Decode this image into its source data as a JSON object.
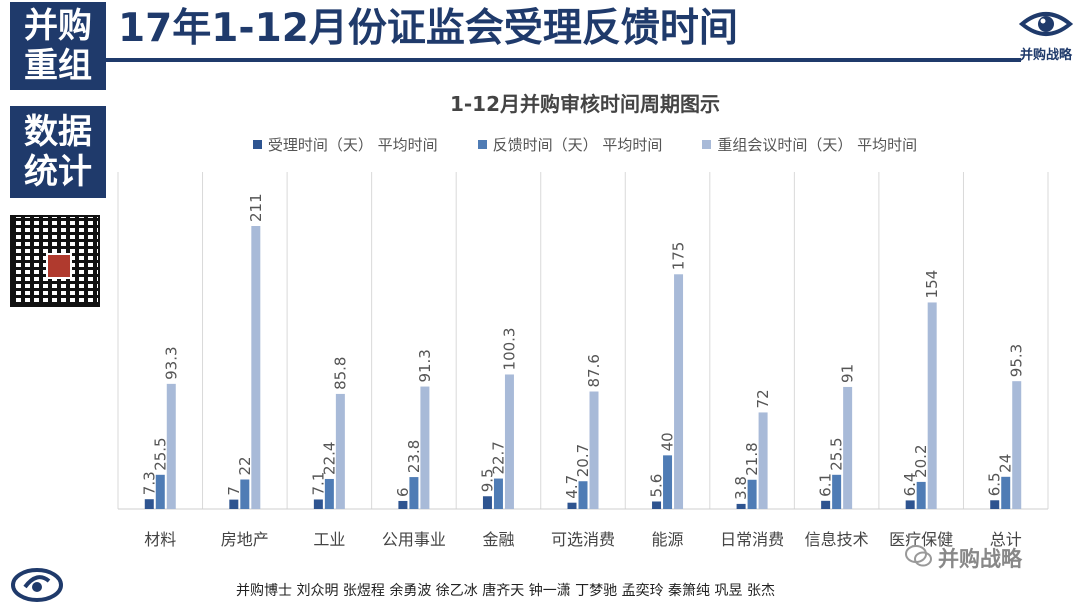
{
  "side_tiles": [
    {
      "line1": "并购",
      "line2": "重组"
    },
    {
      "line1": "数据",
      "line2": "统计"
    }
  ],
  "page_title": "17年1-12月份证监会受理反馈时间",
  "logo_text": "并购战略",
  "footer": {
    "credits": "并购博士 刘众明 张煜程 余勇波 徐乙冰 唐齐天 钟一潇 丁梦驰 孟奕玲 秦箫纯 巩昱 张杰",
    "watermark": "并购战略"
  },
  "colors": {
    "brand": "#1f3a6b",
    "series": [
      "#2e5490",
      "#4f7cb5",
      "#a8bad8"
    ]
  },
  "icons": [
    "qr-code-icon",
    "eye-logo-icon",
    "circle-logo-icon",
    "wechat-icon"
  ],
  "chart_data": {
    "type": "bar",
    "title": "1-12月并购审核时间周期图示",
    "legend_position": "top",
    "grid": "vertical category separators",
    "categories": [
      "材料",
      "房地产",
      "工业",
      "公用事业",
      "金融",
      "可选消费",
      "能源",
      "日常消费",
      "信息技术",
      "医疗保健",
      "总计"
    ],
    "series": [
      {
        "name": "受理时间（天） 平均时间",
        "values": [
          7.3,
          7,
          7.1,
          6,
          9.5,
          4.7,
          5.6,
          3.8,
          6.1,
          6.4,
          6.5
        ]
      },
      {
        "name": "反馈时间（天） 平均时间",
        "values": [
          25.5,
          22,
          22.4,
          23.8,
          22.7,
          20.7,
          40,
          21.8,
          25.5,
          20.2,
          24
        ]
      },
      {
        "name": "重组会议时间（天） 平均时间",
        "values": [
          93.3,
          211,
          85.8,
          91.3,
          100.3,
          87.6,
          175,
          72,
          91,
          154,
          95.3
        ]
      }
    ],
    "data_labels": [
      [
        "7.3",
        "7",
        "7.1",
        "6",
        "9.5",
        "4.7",
        "5.6",
        "3.8",
        "6.1",
        "6.4",
        "6.5"
      ],
      [
        "25.5",
        "22",
        "22.4",
        "23.8",
        "22.7",
        "20.7",
        "40",
        "21.8",
        "25.5",
        "20.2",
        "24"
      ],
      [
        "93.3",
        "211",
        "85.8",
        "91.3",
        "100.3",
        "87.6",
        "175",
        "72",
        "91",
        "154",
        "95.3"
      ]
    ]
  }
}
